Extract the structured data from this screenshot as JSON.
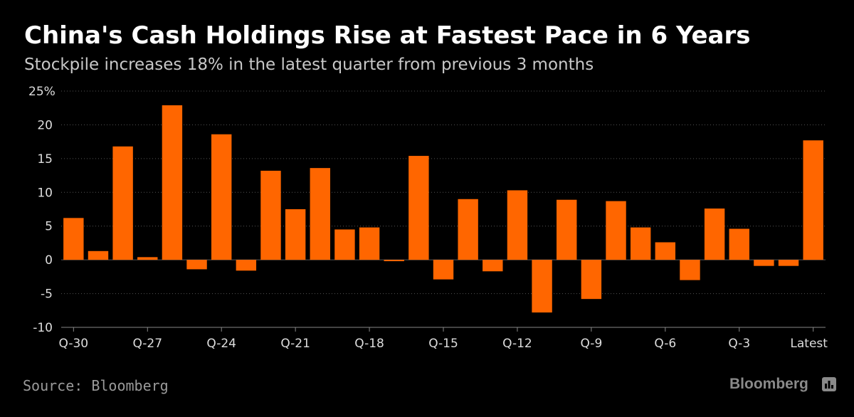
{
  "header": {
    "title": "China's Cash Holdings Rise at Fastest Pace in 6 Years",
    "subtitle": "Stockpile increases 18% in the latest quarter from previous 3 months"
  },
  "footer": {
    "source": "Source: Bloomberg",
    "brand": "Bloomberg",
    "brand_icon": "bloomberg-terminal-icon"
  },
  "colors": {
    "bar": "#ff6600",
    "grid": "#555555",
    "background": "#000000",
    "axis_text": "#dddddd"
  },
  "chart_data": {
    "type": "bar",
    "title": "China's Cash Holdings Rise at Fastest Pace in 6 Years",
    "subtitle": "Stockpile increases 18% in the latest quarter from previous 3 months",
    "xlabel": "",
    "ylabel": "",
    "ylim": [
      -10,
      25
    ],
    "yticks": [
      -10,
      -5,
      0,
      5,
      10,
      15,
      20,
      25
    ],
    "ytick_labels": [
      "-10",
      "-5",
      "0",
      "5",
      "10",
      "15",
      "20",
      "25%"
    ],
    "grid": true,
    "categories": [
      "Q-30",
      "Q-29",
      "Q-28",
      "Q-27",
      "Q-26",
      "Q-25",
      "Q-24",
      "Q-23",
      "Q-22",
      "Q-21",
      "Q-20",
      "Q-19",
      "Q-18",
      "Q-17",
      "Q-16",
      "Q-15",
      "Q-14",
      "Q-13",
      "Q-12",
      "Q-11",
      "Q-10",
      "Q-9",
      "Q-8",
      "Q-7",
      "Q-6",
      "Q-5",
      "Q-4",
      "Q-3",
      "Q-2",
      "Q-1",
      "Latest"
    ],
    "xtick_labels": [
      "Q-30",
      "Q-27",
      "Q-24",
      "Q-21",
      "Q-18",
      "Q-15",
      "Q-12",
      "Q-9",
      "Q-6",
      "Q-3",
      "Latest"
    ],
    "values": [
      6.2,
      1.3,
      16.8,
      0.4,
      22.9,
      -1.4,
      18.6,
      -1.6,
      13.2,
      7.5,
      13.6,
      4.5,
      4.8,
      -0.2,
      15.4,
      -2.9,
      9.0,
      -1.7,
      10.3,
      -7.8,
      8.9,
      -5.8,
      8.7,
      4.8,
      2.6,
      -3.0,
      7.6,
      4.6,
      -0.9,
      -0.9,
      17.7
    ]
  }
}
